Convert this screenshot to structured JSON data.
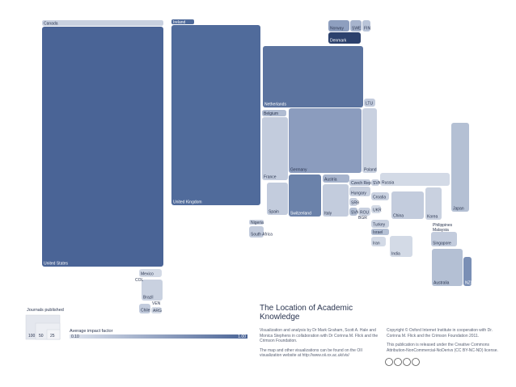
{
  "countries": [
    {
      "label": "Canada"
    },
    {
      "label": "United States"
    },
    {
      "label": "Ireland"
    },
    {
      "label": "United Kingdom"
    },
    {
      "label": "Norway"
    },
    {
      "label": "SWE"
    },
    {
      "label": "FIN"
    },
    {
      "label": "Denmark"
    },
    {
      "label": "Netherlands"
    },
    {
      "label": "LTU"
    },
    {
      "label": "Belgium"
    },
    {
      "label": "France"
    },
    {
      "label": "Germany"
    },
    {
      "label": "Poland"
    },
    {
      "label": "Austria"
    },
    {
      "label": "Czech Rep."
    },
    {
      "label": "SVK"
    },
    {
      "label": "Russia"
    },
    {
      "label": "Japan"
    },
    {
      "label": "Spain"
    },
    {
      "label": "Switzerland"
    },
    {
      "label": "Italy"
    },
    {
      "label": "Hungary"
    },
    {
      "label": "SRB"
    },
    {
      "label": "SVN"
    },
    {
      "label": "ROU"
    },
    {
      "label": "Croatia"
    },
    {
      "label": "UKR"
    },
    {
      "label": "China"
    },
    {
      "label": "Korea"
    },
    {
      "label": "Nigeria"
    },
    {
      "label": "South Africa"
    },
    {
      "label": "Turkey"
    },
    {
      "label": "Israel"
    },
    {
      "label": "Iran"
    },
    {
      "label": "Singapore"
    },
    {
      "label": "India"
    },
    {
      "label": "Australia"
    },
    {
      "label": "NZL"
    },
    {
      "label": "Mexico"
    },
    {
      "label": "Brazil"
    },
    {
      "label": "Chile"
    },
    {
      "label": "ARG"
    }
  ],
  "extra_labels": [
    "COL",
    "VEN",
    "BGR",
    "Philippines",
    "Malaysia"
  ],
  "legend": {
    "size_title": "Journals published",
    "size_labels": [
      "100",
      "50",
      "25"
    ],
    "color_title": "Average impact factor",
    "color_min": "0.10",
    "color_max": "1.00"
  },
  "title": "The Location of Academic Knowledge",
  "credits": [
    "Visualization and analysis by Dr Mark Graham, Scott A. Hale and Monica Stephens in collaboration with Dr Corinna M. Flick and the Crimson Foundation.",
    "The map and other visualizations can be found on the OII visualization website at http://www.oii.ox.ac.uk/vis/"
  ],
  "copyright": [
    "Copyright © Oxford Internet Institute in cooperation with Dr. Corinna M. Flick and the Crimson Foundation 2011.",
    "This publication is released under the Creative Commons Attribution-NonCommercial-NoDerivs (CC BY-NC-ND) license."
  ]
}
